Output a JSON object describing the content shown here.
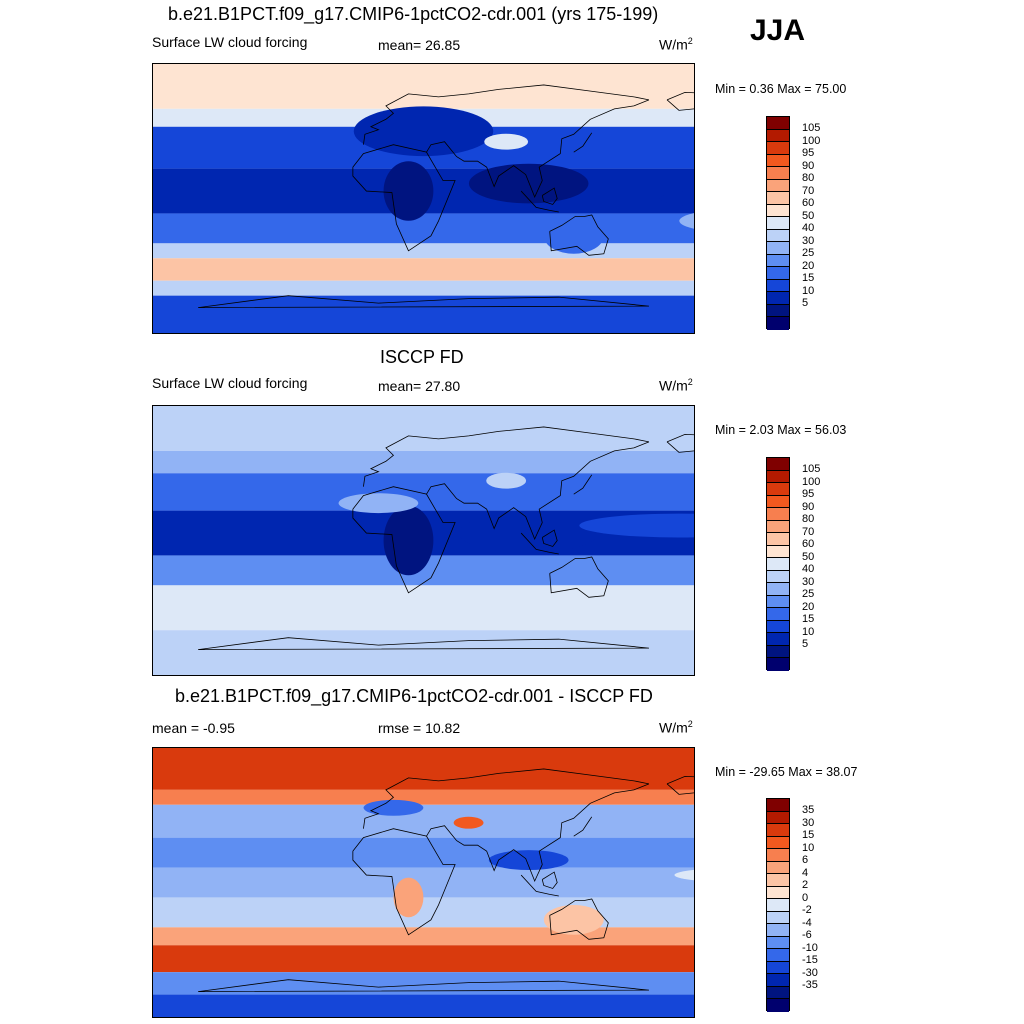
{
  "season": "JJA",
  "panels": [
    {
      "title": "b.e21.B1PCT.f09_g17.CMIP6-1pctCO2-cdr.001 (yrs 175-199)",
      "left_label": "Surface LW cloud forcing",
      "center_label": "mean=  26.85",
      "units": "W/m",
      "units_sup": "2",
      "minmax": "Min =   0.36 Max =  75.00",
      "scale": "abs",
      "field": "model"
    },
    {
      "title": "ISCCP FD",
      "left_label": "Surface LW cloud forcing",
      "center_label": "mean=  27.80",
      "units": "W/m",
      "units_sup": "2",
      "minmax": "Min =   2.03 Max =  56.03",
      "scale": "abs",
      "field": "obs"
    },
    {
      "title": "b.e21.B1PCT.f09_g17.CMIP6-1pctCO2-cdr.001 - ISCCP FD",
      "left_label": "mean =  -0.95",
      "center_label": "rmse =  10.82",
      "units": "W/m",
      "units_sup": "2",
      "minmax": "Min = -29.65 Max =  38.07",
      "scale": "diff",
      "field": "diff"
    }
  ],
  "colorbars": {
    "abs": {
      "colors": [
        "#7f0000",
        "#b31a00",
        "#d93a0d",
        "#f2591f",
        "#f77f4f",
        "#faa37a",
        "#fcc4a5",
        "#fee4d2",
        "#dde8f7",
        "#bcd2f7",
        "#91b3f5",
        "#5e8ef2",
        "#3468ea",
        "#1546d8",
        "#0026b0",
        "#001480",
        "#00006e"
      ],
      "labels": [
        "105",
        "100",
        "95",
        "90",
        "80",
        "70",
        "60",
        "50",
        "40",
        "30",
        "25",
        "20",
        "15",
        "10",
        "5"
      ]
    },
    "diff": {
      "colors": [
        "#7f0000",
        "#b31a00",
        "#d93a0d",
        "#f2591f",
        "#f77f4f",
        "#faa37a",
        "#fcc4a5",
        "#fee4d2",
        "#dde8f7",
        "#bcd2f7",
        "#91b3f5",
        "#5e8ef2",
        "#3468ea",
        "#1546d8",
        "#0026b0",
        "#001480",
        "#00006e"
      ],
      "labels": [
        "35",
        "30",
        "15",
        "10",
        "6",
        "4",
        "2",
        "0",
        "-2",
        "-4",
        "-6",
        "-10",
        "-15",
        "-30",
        "-35"
      ]
    }
  }
}
